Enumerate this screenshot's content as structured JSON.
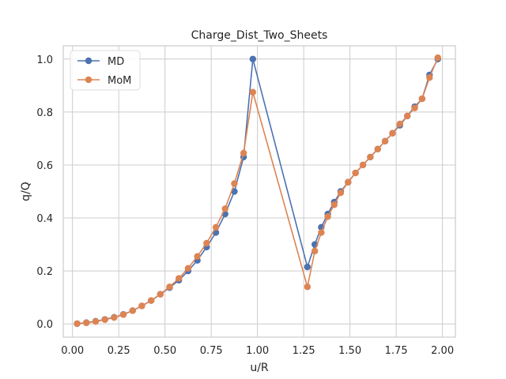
{
  "chart_data": {
    "type": "line",
    "title": "Charge_Dist_Two_Sheets",
    "xlabel": "u/R",
    "ylabel": "q/Q",
    "xlim": [
      -0.05,
      2.07
    ],
    "ylim": [
      -0.05,
      1.05
    ],
    "xticks": [
      0.0,
      0.25,
      0.5,
      0.75,
      1.0,
      1.25,
      1.5,
      1.75,
      2.0
    ],
    "xtick_labels": [
      "0.00",
      "0.25",
      "0.50",
      "0.75",
      "1.00",
      "1.25",
      "1.50",
      "1.75",
      "2.00"
    ],
    "yticks": [
      0.0,
      0.2,
      0.4,
      0.6,
      0.8,
      1.0
    ],
    "ytick_labels": [
      "0.0",
      "0.2",
      "0.4",
      "0.6",
      "0.8",
      "1.0"
    ],
    "grid": true,
    "legend_position": "top-left",
    "series": [
      {
        "name": "MD",
        "color": "#4c72b0",
        "x": [
          0.025,
          0.075,
          0.125,
          0.175,
          0.225,
          0.275,
          0.325,
          0.375,
          0.425,
          0.475,
          0.525,
          0.575,
          0.625,
          0.675,
          0.725,
          0.775,
          0.825,
          0.875,
          0.925,
          0.975,
          1.27,
          1.31,
          1.345,
          1.38,
          1.415,
          1.45,
          1.49,
          1.53,
          1.57,
          1.61,
          1.65,
          1.69,
          1.73,
          1.77,
          1.81,
          1.85,
          1.89,
          1.93,
          1.975
        ],
        "y": [
          0.001,
          0.005,
          0.01,
          0.017,
          0.025,
          0.036,
          0.05,
          0.068,
          0.088,
          0.112,
          0.137,
          0.165,
          0.2,
          0.24,
          0.29,
          0.345,
          0.415,
          0.5,
          0.63,
          1.0,
          0.215,
          0.3,
          0.365,
          0.415,
          0.46,
          0.5,
          0.535,
          0.57,
          0.6,
          0.63,
          0.66,
          0.69,
          0.72,
          0.75,
          0.785,
          0.82,
          0.85,
          0.94,
          1.0
        ]
      },
      {
        "name": "MoM",
        "color": "#dd8452",
        "x": [
          0.025,
          0.075,
          0.125,
          0.175,
          0.225,
          0.275,
          0.325,
          0.375,
          0.425,
          0.475,
          0.525,
          0.575,
          0.625,
          0.675,
          0.725,
          0.775,
          0.825,
          0.875,
          0.925,
          0.975,
          1.27,
          1.31,
          1.345,
          1.38,
          1.415,
          1.45,
          1.49,
          1.53,
          1.57,
          1.61,
          1.65,
          1.69,
          1.73,
          1.77,
          1.81,
          1.85,
          1.89,
          1.93,
          1.975
        ],
        "y": [
          0.001,
          0.004,
          0.009,
          0.016,
          0.024,
          0.035,
          0.05,
          0.068,
          0.088,
          0.112,
          0.14,
          0.172,
          0.21,
          0.255,
          0.305,
          0.365,
          0.435,
          0.53,
          0.645,
          0.875,
          0.14,
          0.275,
          0.345,
          0.405,
          0.45,
          0.495,
          0.535,
          0.57,
          0.6,
          0.63,
          0.66,
          0.69,
          0.72,
          0.755,
          0.785,
          0.815,
          0.85,
          0.93,
          1.005
        ]
      }
    ]
  }
}
